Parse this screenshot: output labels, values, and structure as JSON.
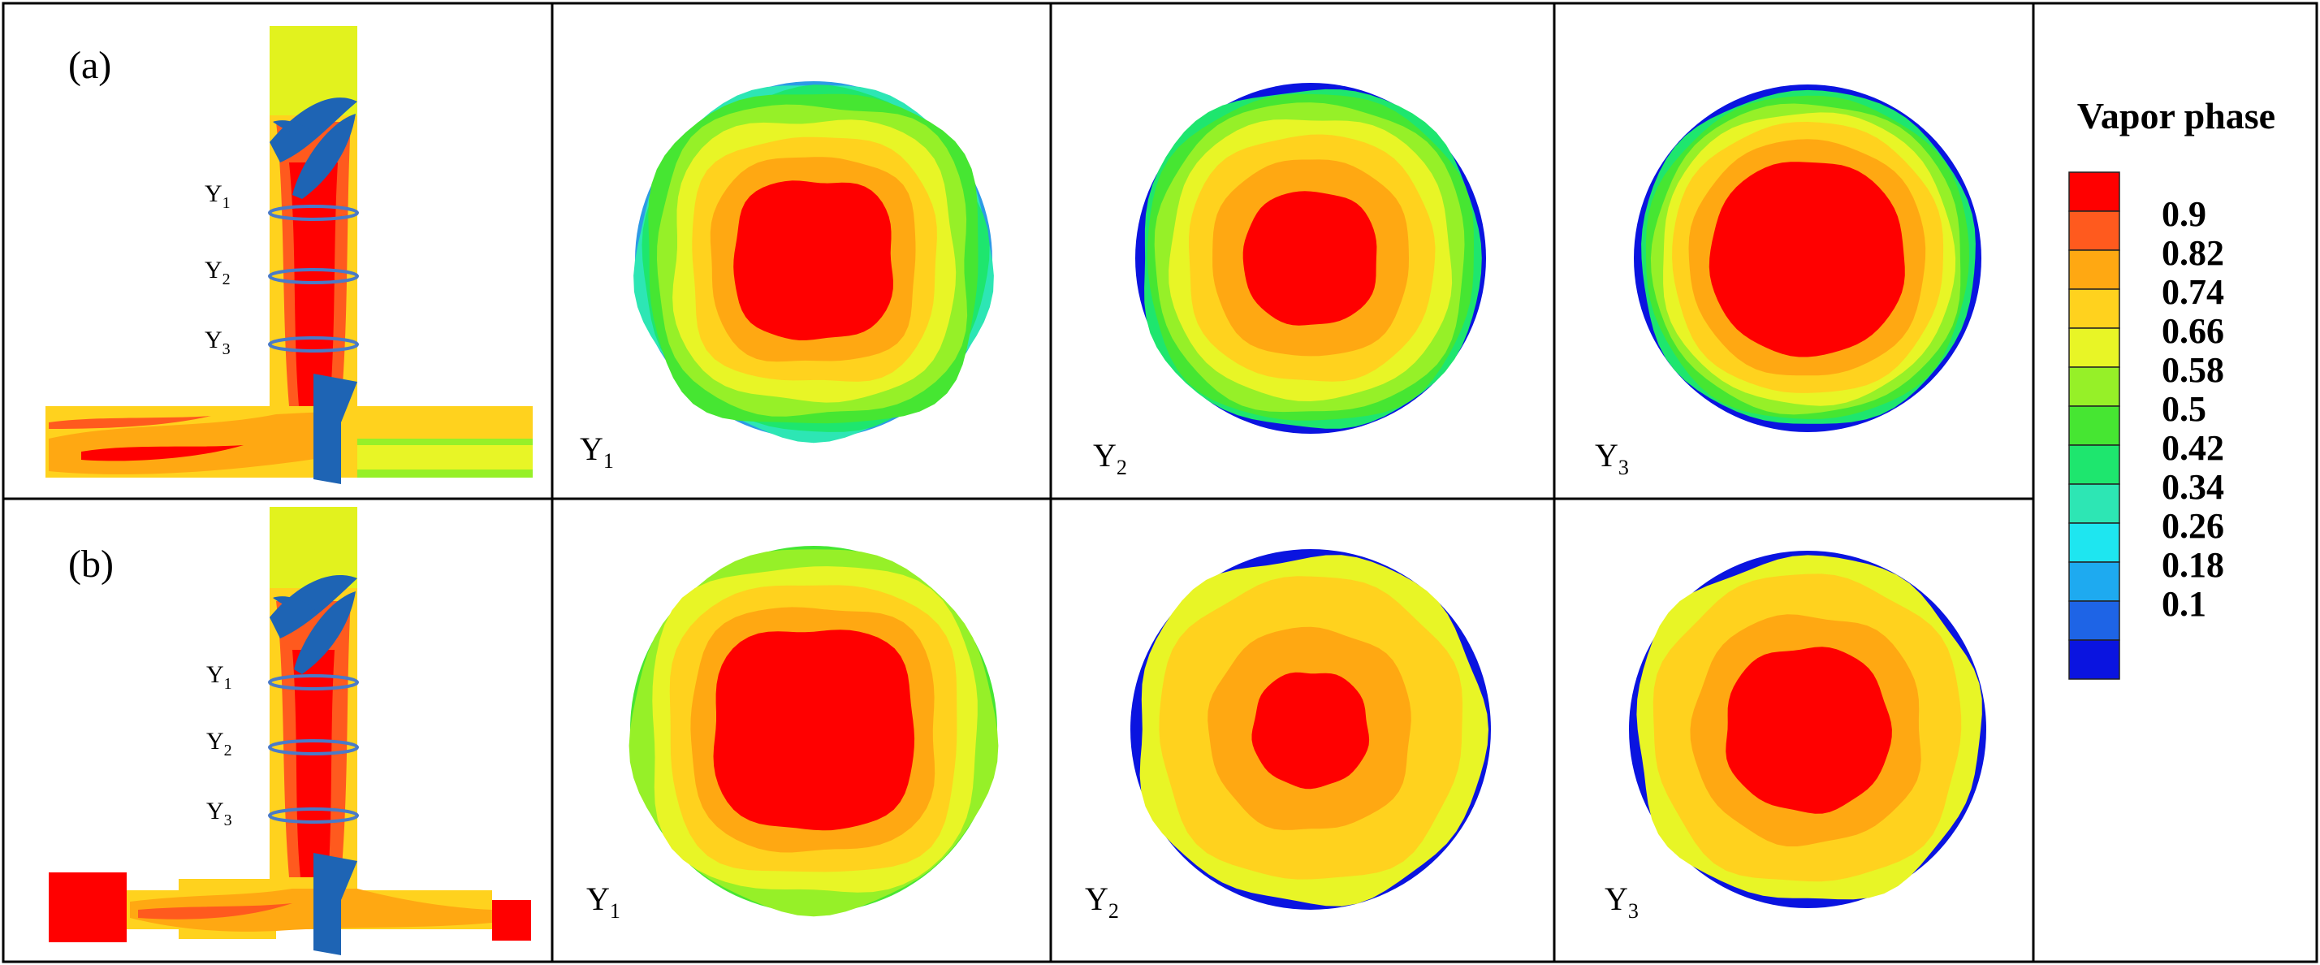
{
  "figure": {
    "rows": [
      {
        "label": "(a)",
        "pipe_labels": [
          "Y",
          "Y",
          "Y"
        ],
        "pipe_subs": [
          "1",
          "2",
          "3"
        ],
        "sections": [
          {
            "name": "Y",
            "sub": "1",
            "core_max": 0.9,
            "rim_min": 0.26
          },
          {
            "name": "Y",
            "sub": "2",
            "core_max": 0.9,
            "rim_min": 0.1
          },
          {
            "name": "Y",
            "sub": "3",
            "core_max": 0.9,
            "rim_min": 0.1
          }
        ]
      },
      {
        "label": "(b)",
        "pipe_labels": [
          "Y",
          "Y",
          "Y"
        ],
        "pipe_subs": [
          "1",
          "2",
          "3"
        ],
        "sections": [
          {
            "name": "Y",
            "sub": "1",
            "core_max": 0.9,
            "rim_min": 0.58
          },
          {
            "name": "Y",
            "sub": "2",
            "core_max": 0.9,
            "rim_min": 0.1
          },
          {
            "name": "Y",
            "sub": "3",
            "core_max": 0.9,
            "rim_min": 0.1
          }
        ]
      }
    ]
  },
  "legend": {
    "title": "Vapor phase",
    "ticks": [
      "0.9",
      "0.82",
      "0.74",
      "0.66",
      "0.58",
      "0.5",
      "0.42",
      "0.34",
      "0.26",
      "0.18",
      "0.1"
    ],
    "colors": [
      "#ff0000",
      "#ff5a1e",
      "#ffa812",
      "#ffd21e",
      "#e8f526",
      "#96f028",
      "#46e632",
      "#1ee66e",
      "#2de6b4",
      "#1ee6f0",
      "#1eaaf0",
      "#1e64e6",
      "#0a14e0"
    ]
  }
}
